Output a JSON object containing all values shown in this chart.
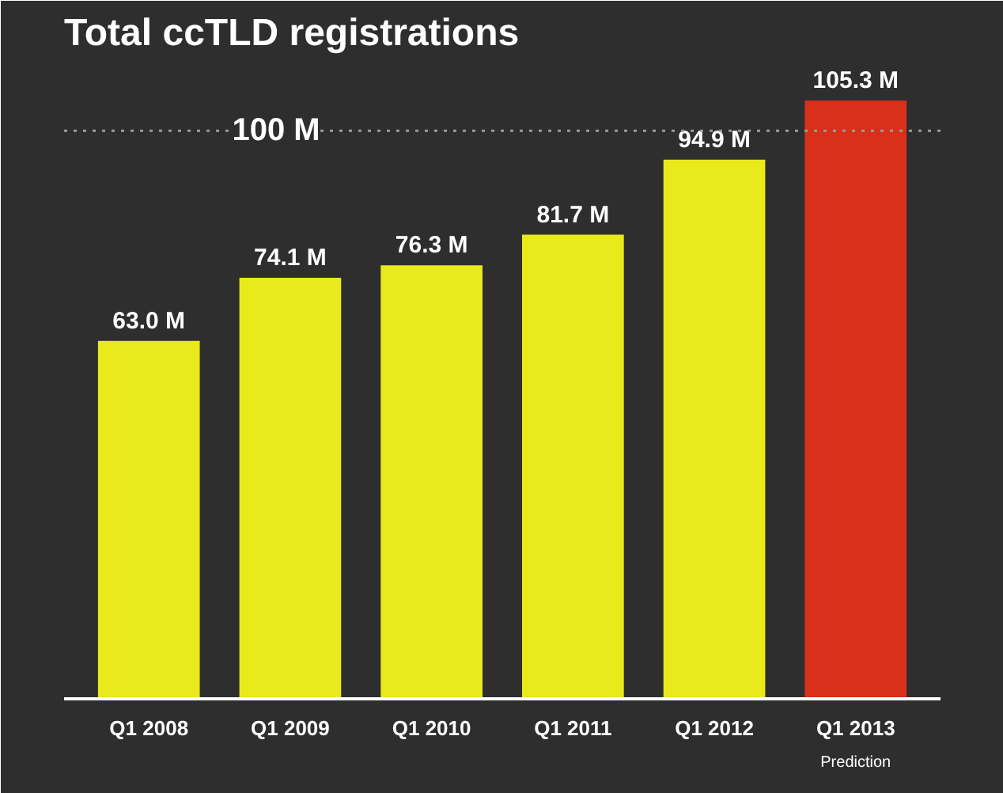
{
  "chart_data": {
    "type": "bar",
    "title": "Total ccTLD registrations",
    "categories": [
      "Q1 2008",
      "Q1 2009",
      "Q1 2010",
      "Q1 2011",
      "Q1 2012",
      "Q1 2013"
    ],
    "values": [
      63.0,
      74.1,
      76.3,
      81.7,
      94.9,
      105.3
    ],
    "colors": [
      "#e9e91c",
      "#e9e91c",
      "#e9e91c",
      "#e9e91c",
      "#e9e91c",
      "#d8301a"
    ],
    "value_labels": [
      "63.0 M",
      "74.1 M",
      "76.3 M",
      "81.7 M",
      "94.9 M",
      "105.3 M"
    ],
    "ylim": [
      0,
      112
    ],
    "tick_labels": "x",
    "grid": false,
    "ref_lines": [
      {
        "axis": "y",
        "value": 100,
        "label": "100 M",
        "color": "#9a9a9a",
        "line_style": "dotted"
      }
    ],
    "annotations": [
      "Prediction"
    ]
  }
}
